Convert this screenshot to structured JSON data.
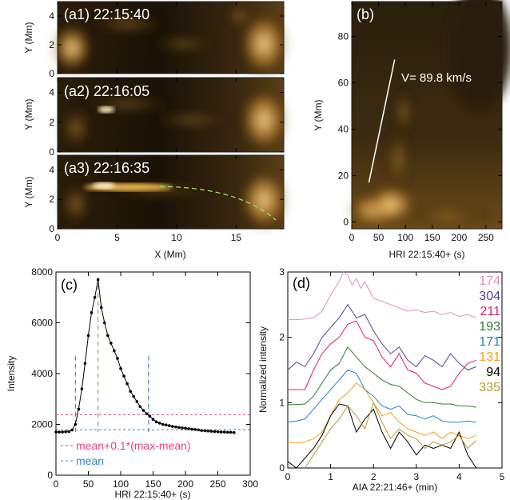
{
  "chart_data": [
    {
      "type": "image",
      "panels": [
        {
          "label": "(a1) 22:15:40"
        },
        {
          "label": "(a2) 22:16:05"
        },
        {
          "label": "(a3) 22:16:35"
        }
      ],
      "xlabel": "X (Mm)",
      "ylabel": "Y (Mm)",
      "xlim": [
        0,
        19
      ],
      "ylim": [
        0,
        5
      ],
      "xticks": [
        "0",
        "5",
        "10",
        "15"
      ],
      "yticks": [
        "0",
        "2",
        "4"
      ],
      "colormap": "gold"
    },
    {
      "type": "heatmap",
      "label": "(b)",
      "xlabel": "HRI 22:15:40+  (s)",
      "ylabel": "Y (Mm)",
      "xlim": [
        0,
        280
      ],
      "ylim": [
        -3,
        95
      ],
      "xticks": [
        "0",
        "50",
        "100",
        "150",
        "200",
        "250"
      ],
      "yticks": [
        "0",
        "20",
        "40",
        "60",
        "80"
      ],
      "annotation": "V= 89.8 km/s",
      "fit_line": {
        "x": [
          32,
          80
        ],
        "y": [
          17,
          70
        ]
      },
      "colormap": "gold"
    },
    {
      "type": "line",
      "label": "(c)",
      "xlabel": "HRI 22:15:40+  (s)",
      "ylabel": "Intensity",
      "xlim": [
        0,
        300
      ],
      "ylim": [
        0,
        8000
      ],
      "xticks": [
        "0",
        "50",
        "100",
        "150",
        "200",
        "250",
        "300"
      ],
      "yticks": [
        "0",
        "2000",
        "4000",
        "6000",
        "8000"
      ],
      "x": [
        0,
        5,
        10,
        15,
        20,
        25,
        30,
        35,
        40,
        45,
        50,
        55,
        60,
        65,
        70,
        75,
        80,
        85,
        90,
        95,
        100,
        105,
        110,
        115,
        120,
        125,
        130,
        135,
        140,
        145,
        150,
        155,
        160,
        165,
        170,
        175,
        180,
        185,
        190,
        195,
        200,
        205,
        210,
        215,
        220,
        225,
        230,
        235,
        240,
        245,
        250,
        255,
        260,
        265,
        270,
        275
      ],
      "values": [
        1700,
        1700,
        1700,
        1710,
        1720,
        1780,
        2000,
        2600,
        3400,
        4400,
        5500,
        6400,
        7000,
        7700,
        6600,
        6000,
        5500,
        5200,
        4900,
        4600,
        4200,
        3900,
        3600,
        3300,
        3100,
        2900,
        2700,
        2550,
        2420,
        2320,
        2200,
        2100,
        2050,
        2000,
        1980,
        1950,
        1920,
        1900,
        1880,
        1860,
        1850,
        1830,
        1810,
        1800,
        1780,
        1760,
        1750,
        1740,
        1730,
        1720,
        1710,
        1700,
        1700,
        1690,
        1690,
        1680
      ],
      "hlines": [
        {
          "name": "mean+0.1*(max-mean)",
          "value": 2380,
          "color": "#e8457e"
        },
        {
          "name": "mean",
          "value": 1790,
          "color": "#3a86c8"
        }
      ],
      "vlines": [
        {
          "x": 30,
          "color": "#3a6fc8"
        },
        {
          "x": 65,
          "color": "#5aa84a"
        },
        {
          "x": 143,
          "color": "#3a6fc8"
        }
      ]
    },
    {
      "type": "line",
      "label": "(d)",
      "xlabel": "AIA 22:21:46+  (min)",
      "ylabel": "Normalized intensity",
      "xlim": [
        0,
        5
      ],
      "ylim": [
        0,
        3
      ],
      "xticks": [
        "0",
        "1",
        "2",
        "3",
        "4",
        "5"
      ],
      "yticks": [
        "0",
        "1",
        "2",
        "3"
      ],
      "series": [
        {
          "name": "174",
          "color": "#e38fc4",
          "x": [
            0,
            0.2,
            0.4,
            0.6,
            0.8,
            1.0,
            1.2,
            1.3,
            1.4,
            1.5,
            1.6,
            1.7,
            1.8,
            1.9,
            2.0,
            2.2,
            2.4,
            2.6,
            2.8,
            3.0,
            3.2,
            3.4,
            3.6,
            3.8,
            4.0,
            4.2,
            4.4
          ],
          "values": [
            2.27,
            2.27,
            2.28,
            2.3,
            2.4,
            2.65,
            2.85,
            3.0,
            2.95,
            2.8,
            2.9,
            2.75,
            2.85,
            2.72,
            2.6,
            2.55,
            2.5,
            2.45,
            2.4,
            2.42,
            2.38,
            2.4,
            2.35,
            2.38,
            2.32,
            2.35,
            2.3
          ]
        },
        {
          "name": "304",
          "color": "#5a3c9a",
          "x": [
            0,
            0.2,
            0.4,
            0.6,
            0.8,
            1.0,
            1.2,
            1.4,
            1.6,
            1.8,
            2.0,
            2.2,
            2.4,
            2.6,
            2.8,
            3.0,
            3.2,
            3.4,
            3.6,
            3.8,
            4.0,
            4.2,
            4.4
          ],
          "values": [
            1.5,
            1.62,
            1.55,
            1.75,
            2.0,
            2.15,
            2.3,
            2.5,
            2.3,
            2.35,
            2.1,
            1.9,
            1.75,
            1.85,
            1.65,
            1.55,
            1.72,
            1.65,
            1.55,
            1.75,
            1.6,
            1.5,
            1.55
          ]
        },
        {
          "name": "211",
          "color": "#e01f63",
          "x": [
            0,
            0.2,
            0.4,
            0.6,
            0.8,
            1.0,
            1.2,
            1.4,
            1.6,
            1.8,
            2.0,
            2.2,
            2.4,
            2.6,
            2.8,
            3.0,
            3.2,
            3.4,
            3.6,
            3.8,
            4.0,
            4.2,
            4.4
          ],
          "values": [
            1.2,
            1.2,
            1.2,
            1.5,
            1.75,
            1.9,
            2.0,
            2.2,
            2.25,
            2.0,
            1.95,
            1.7,
            1.55,
            1.75,
            1.5,
            1.45,
            1.3,
            1.25,
            1.2,
            1.25,
            1.45,
            1.6,
            1.65
          ]
        },
        {
          "name": "193",
          "color": "#2e7d32",
          "x": [
            0,
            0.2,
            0.4,
            0.6,
            0.8,
            1.0,
            1.2,
            1.4,
            1.6,
            1.8,
            2.0,
            2.2,
            2.4,
            2.6,
            2.8,
            3.0,
            3.2,
            3.4,
            3.6,
            3.8,
            4.0,
            4.2,
            4.4
          ],
          "values": [
            0.97,
            0.97,
            0.98,
            1.1,
            1.3,
            1.5,
            1.6,
            1.85,
            1.7,
            1.55,
            1.45,
            1.35,
            1.28,
            1.25,
            1.15,
            1.05,
            1.0,
            1.0,
            0.98,
            0.98,
            0.95,
            0.95,
            0.93
          ]
        },
        {
          "name": "171",
          "color": "#1e88c8",
          "x": [
            0,
            0.2,
            0.4,
            0.6,
            0.8,
            1.0,
            1.2,
            1.4,
            1.6,
            1.8,
            2.0,
            2.2,
            2.4,
            2.6,
            2.8,
            3.0,
            3.2,
            3.4,
            3.6,
            3.8,
            4.0,
            4.2,
            4.4
          ],
          "values": [
            0.7,
            0.72,
            0.75,
            0.9,
            1.05,
            1.2,
            1.35,
            1.5,
            1.45,
            1.2,
            1.1,
            0.95,
            0.9,
            0.95,
            0.82,
            0.8,
            0.75,
            0.8,
            0.72,
            0.7,
            0.7,
            0.72,
            0.7
          ]
        },
        {
          "name": "131",
          "color": "#f2a31b",
          "x": [
            0,
            0.2,
            0.4,
            0.6,
            0.8,
            1.0,
            1.2,
            1.4,
            1.6,
            1.8,
            2.0,
            2.2,
            2.4,
            2.6,
            2.8,
            3.0,
            3.2,
            3.4,
            3.6,
            3.8,
            4.0,
            4.2,
            4.4
          ],
          "values": [
            0.4,
            0.38,
            0.4,
            0.45,
            0.55,
            0.8,
            1.05,
            1.15,
            1.3,
            1.2,
            1.0,
            0.8,
            0.85,
            0.7,
            0.6,
            0.55,
            0.5,
            0.55,
            0.45,
            0.55,
            0.5,
            0.45,
            0.5
          ]
        },
        {
          "name": "94",
          "color": "#000000",
          "x": [
            0,
            0.2,
            0.4,
            0.6,
            0.8,
            1.0,
            1.2,
            1.4,
            1.6,
            1.8,
            2.0,
            2.2,
            2.4,
            2.6,
            2.8,
            3.0,
            3.2,
            3.4,
            3.6,
            3.8,
            4.0,
            4.2,
            4.4
          ],
          "values": [
            0.1,
            0.0,
            0.15,
            0.3,
            0.5,
            0.8,
            0.98,
            0.95,
            0.55,
            0.75,
            0.9,
            0.55,
            0.3,
            0.55,
            0.4,
            0.2,
            0.35,
            0.3,
            0.35,
            0.3,
            0.55,
            0.2,
            0.0
          ]
        },
        {
          "name": "335",
          "color": "#b89a2c",
          "x": [
            0.4,
            0.6,
            0.8,
            1.0,
            1.2,
            1.4,
            1.6,
            1.8,
            2.0,
            2.2,
            2.4,
            2.6,
            2.8,
            3.0,
            3.2,
            3.4,
            3.6,
            3.8,
            4.0,
            4.2,
            4.4
          ],
          "values": [
            0.0,
            0.2,
            0.4,
            0.6,
            0.75,
            0.95,
            0.8,
            0.6,
            1.0,
            0.7,
            0.45,
            0.6,
            0.5,
            0.45,
            0.3,
            0.4,
            0.35,
            0.4,
            0.5,
            0.3,
            0.42
          ]
        }
      ]
    }
  ]
}
